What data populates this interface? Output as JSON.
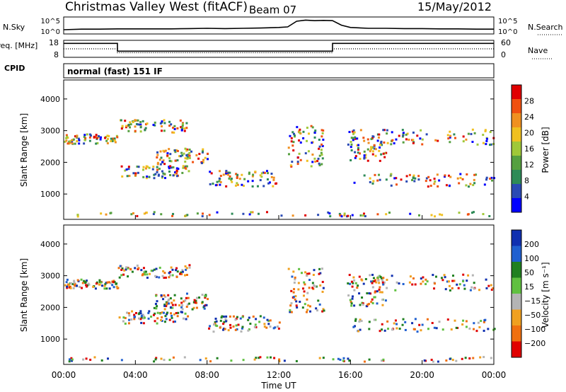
{
  "header": {
    "site_title": "Christmas Valley West (fitACF)",
    "beam": "Beam 07",
    "date": "15/May/2012"
  },
  "colors": {
    "line": "#000000",
    "power_scale": [
      "#0000ff",
      "#2a4ab4",
      "#2e8b57",
      "#56a040",
      "#a0c838",
      "#f0c020",
      "#f09020",
      "#f05010",
      "#e00000"
    ],
    "velocity_scale": [
      "#1030b0",
      "#2060d0",
      "#208020",
      "#60c040",
      "#b4b4b4",
      "#f0a020",
      "#f07010",
      "#e00000"
    ]
  },
  "chart_data": [
    {
      "type": "line",
      "panel": "noise",
      "left_label": "N.Sky",
      "right_label": "N.Search",
      "y_ticks_left": [
        "10^5",
        "10^0"
      ],
      "y_ticks_right": [
        "10^5",
        "10^0"
      ],
      "ylim": [
        0,
        5
      ],
      "x": [
        0,
        1,
        2,
        3,
        4,
        5,
        6,
        7,
        8,
        9,
        10,
        11,
        12,
        12.5,
        13,
        13.5,
        14,
        14.5,
        15,
        15.5,
        16,
        17,
        18,
        19,
        20,
        21,
        22,
        23,
        24
      ],
      "series": [
        {
          "values": [
            1.0,
            1.2,
            1.2,
            1.3,
            1.3,
            1.3,
            1.3,
            1.4,
            1.5,
            1.4,
            1.5,
            1.6,
            1.8,
            2.0,
            4.0,
            4.4,
            4.2,
            4.3,
            4.2,
            2.6,
            1.8,
            1.5,
            1.5,
            1.4,
            1.4,
            1.3,
            1.3,
            1.2,
            1.2
          ]
        }
      ]
    },
    {
      "type": "line",
      "panel": "frequency",
      "left_label": "Freq. [MHz]",
      "right_label": "Nave",
      "y_ticks_left": [
        "18",
        "8"
      ],
      "y_ticks_right": [
        "60",
        "0"
      ],
      "ylim": [
        8,
        18
      ],
      "x": [
        0,
        3,
        3,
        15,
        15,
        24
      ],
      "series": [
        {
          "values": [
            16.5,
            16.5,
            11.5,
            11.5,
            16.5,
            16.5
          ]
        },
        {
          "values": [
            13,
            13,
            10.5,
            10.5,
            13,
            13
          ]
        }
      ]
    },
    {
      "type": "table",
      "panel": "cpid",
      "label": "CPID",
      "text": "normal (fast) 151 IF"
    },
    {
      "type": "heatmap",
      "panel": "power",
      "ylabel": "Slant Range [km]",
      "yticks": [
        1000,
        2000,
        3000,
        4000
      ],
      "ylim": [
        200,
        4600
      ],
      "xlim": [
        0,
        24
      ],
      "colorbar_label": "Power [dB]",
      "colorbar_ticks": [
        "4",
        "8",
        "12",
        "16",
        "20",
        "24",
        "28"
      ],
      "colorbar_range": [
        0,
        32
      ]
    },
    {
      "type": "heatmap",
      "panel": "velocity",
      "ylabel": "Slant Range [km]",
      "yticks": [
        1000,
        2000,
        3000,
        4000
      ],
      "ylim": [
        200,
        4600
      ],
      "xlim": [
        0,
        24
      ],
      "colorbar_label": "Velocity [m s⁻¹]",
      "colorbar_ticks": [
        "200",
        "100",
        "50",
        "15",
        "−15",
        "−50",
        "−100",
        "−200"
      ],
      "xlabel": "Time UT",
      "xtick_labels": [
        "00:00",
        "04:00",
        "08:00",
        "12:00",
        "16:00",
        "20:00",
        "00:00"
      ],
      "xtick_values": [
        0,
        4,
        8,
        12,
        16,
        20,
        24
      ]
    }
  ]
}
